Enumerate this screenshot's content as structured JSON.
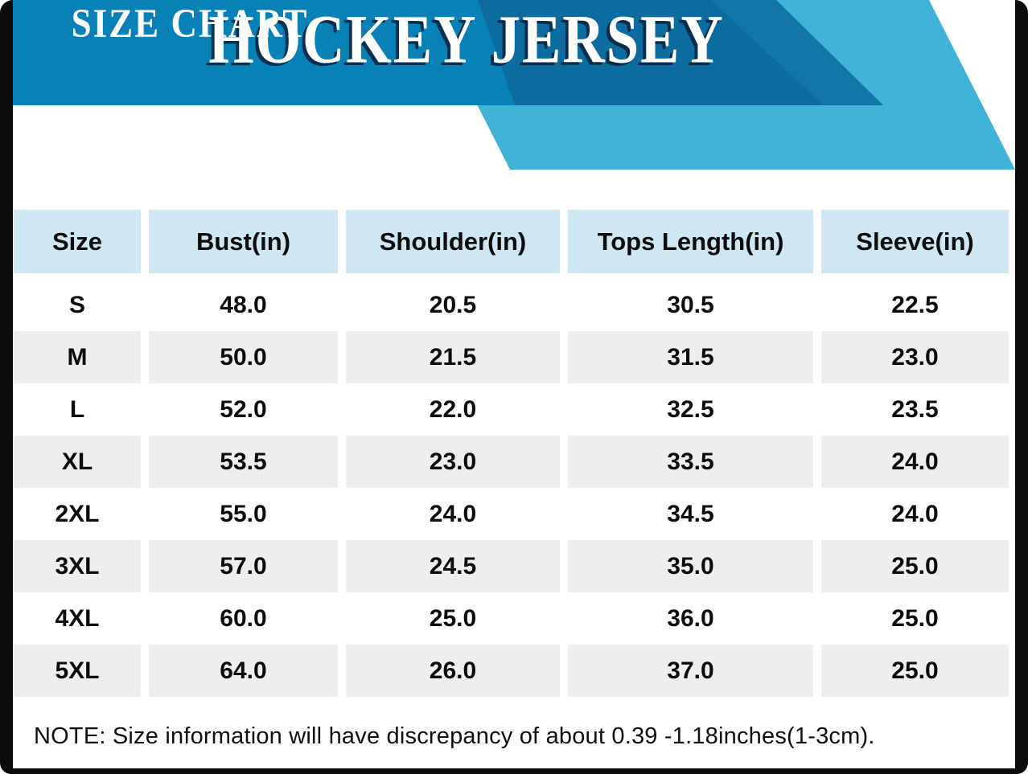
{
  "header": {
    "title": "HOCKEY JERSEY",
    "subtitle": "SIZE CHART"
  },
  "table": {
    "columns": [
      "Size",
      "Bust(in)",
      "Shoulder(in)",
      "Tops Length(in)",
      "Sleeve(in)"
    ],
    "rows": [
      [
        "S",
        "48.0",
        "20.5",
        "30.5",
        "22.5"
      ],
      [
        "M",
        "50.0",
        "21.5",
        "31.5",
        "23.0"
      ],
      [
        "L",
        "52.0",
        "22.0",
        "32.5",
        "23.5"
      ],
      [
        "XL",
        "53.5",
        "23.0",
        "33.5",
        "24.0"
      ],
      [
        "2XL",
        "55.0",
        "24.0",
        "34.5",
        "24.0"
      ],
      [
        "3XL",
        "57.0",
        "24.5",
        "35.0",
        "25.0"
      ],
      [
        "4XL",
        "60.0",
        "25.0",
        "36.0",
        "25.0"
      ],
      [
        "5XL",
        "64.0",
        "26.0",
        "37.0",
        "25.0"
      ]
    ]
  },
  "note": "NOTE: Size information will have discrepancy of about 0.39 -1.18inches(1-3cm).",
  "colors": {
    "banner": "#0881b6",
    "banner_dark": "#0c6ca0",
    "banner_edge": "#1277a8",
    "ribbon": "#41b3d7",
    "header_cell": "#cfe6f3",
    "row_stripe": "#eeeef0",
    "frame": "#0b0b0b"
  },
  "chart_data": {
    "type": "table",
    "title": "HOCKEY JERSEY",
    "subtitle": "SIZE CHART",
    "columns": [
      "Size",
      "Bust(in)",
      "Shoulder(in)",
      "Tops Length(in)",
      "Sleeve(in)"
    ],
    "rows": [
      [
        "S",
        48.0,
        20.5,
        30.5,
        22.5
      ],
      [
        "M",
        50.0,
        21.5,
        31.5,
        23.0
      ],
      [
        "L",
        52.0,
        22.0,
        32.5,
        23.5
      ],
      [
        "XL",
        53.5,
        23.0,
        33.5,
        24.0
      ],
      [
        "2XL",
        55.0,
        24.0,
        34.5,
        24.0
      ],
      [
        "3XL",
        57.0,
        24.5,
        35.0,
        25.0
      ],
      [
        "4XL",
        60.0,
        25.0,
        36.0,
        25.0
      ],
      [
        "5XL",
        64.0,
        26.0,
        37.0,
        25.0
      ]
    ],
    "note": "NOTE: Size information will have discrepancy of about 0.39 -1.18inches(1-3cm).",
    "units": "inches"
  }
}
